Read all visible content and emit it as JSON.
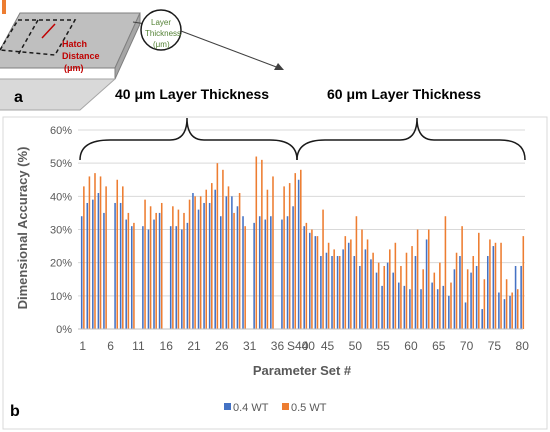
{
  "panel_a": {
    "label": "a",
    "hatch_label_1": "Hatch",
    "hatch_label_2": "Distance",
    "hatch_label_3": "(μm)",
    "layer_label_1": "Layer",
    "layer_label_2": "Thickness",
    "layer_label_3": "(μm)"
  },
  "panel_b": {
    "label": "b",
    "group_left_label": "40 μm Layer Thickness",
    "group_right_label": "60 μm Layer Thickness"
  },
  "colors": {
    "series_04": "#4472C4",
    "series_05": "#ED7D31",
    "axis_text": "#595959",
    "grid": "#d9d9d9",
    "hatch_red": "#c00000",
    "layer_green": "#548235"
  },
  "chart_data": {
    "type": "bar",
    "xlabel": "Parameter Set #",
    "ylabel": "Dimensional Accuracy (%)",
    "ylim": [
      0,
      60
    ],
    "yticks": [
      "0%",
      "10%",
      "20%",
      "30%",
      "40%",
      "50%",
      "60%"
    ],
    "xticks": [
      "1",
      "6",
      "11",
      "16",
      "21",
      "26",
      "31",
      "36",
      "S40",
      "40",
      "45",
      "50",
      "55",
      "60",
      "65",
      "70",
      "75",
      "80"
    ],
    "grid": true,
    "legend_position": "bottom",
    "series": [
      {
        "name": "0.4 WT",
        "values": [
          34,
          38,
          39,
          41,
          35,
          0,
          38,
          38,
          33,
          31,
          0,
          31,
          30,
          33,
          35,
          0,
          31,
          31,
          30,
          32,
          41,
          36,
          38,
          38,
          42,
          34,
          40,
          40,
          37,
          34,
          0,
          32,
          34,
          33,
          34,
          0,
          33,
          34,
          37,
          45,
          31,
          29,
          28,
          22,
          23,
          22,
          22,
          24,
          26,
          22,
          19,
          24,
          21,
          17,
          13,
          20,
          17,
          14,
          13,
          12,
          22,
          12,
          27,
          14,
          12,
          13,
          10,
          18,
          22,
          8,
          17,
          19,
          6,
          22,
          25,
          11,
          9,
          10,
          19,
          19
        ]
      },
      {
        "name": "0.5 WT",
        "values": [
          43,
          46,
          47,
          46,
          43,
          0,
          45,
          43,
          35,
          32,
          0,
          39,
          37,
          35,
          38,
          0,
          37,
          36,
          35,
          39,
          40,
          40,
          42,
          44,
          50,
          48,
          43,
          35,
          41,
          31,
          0,
          52,
          51,
          42,
          46,
          0,
          43,
          44,
          47,
          48,
          32,
          30,
          28,
          36,
          26,
          24,
          22,
          28,
          27,
          34,
          30,
          27,
          23,
          20,
          19,
          24,
          26,
          19,
          23,
          25,
          30,
          18,
          30,
          17,
          20,
          34,
          14,
          23,
          31,
          18,
          22,
          29,
          15,
          27,
          26,
          26,
          15,
          11,
          12,
          28
        ]
      }
    ]
  }
}
